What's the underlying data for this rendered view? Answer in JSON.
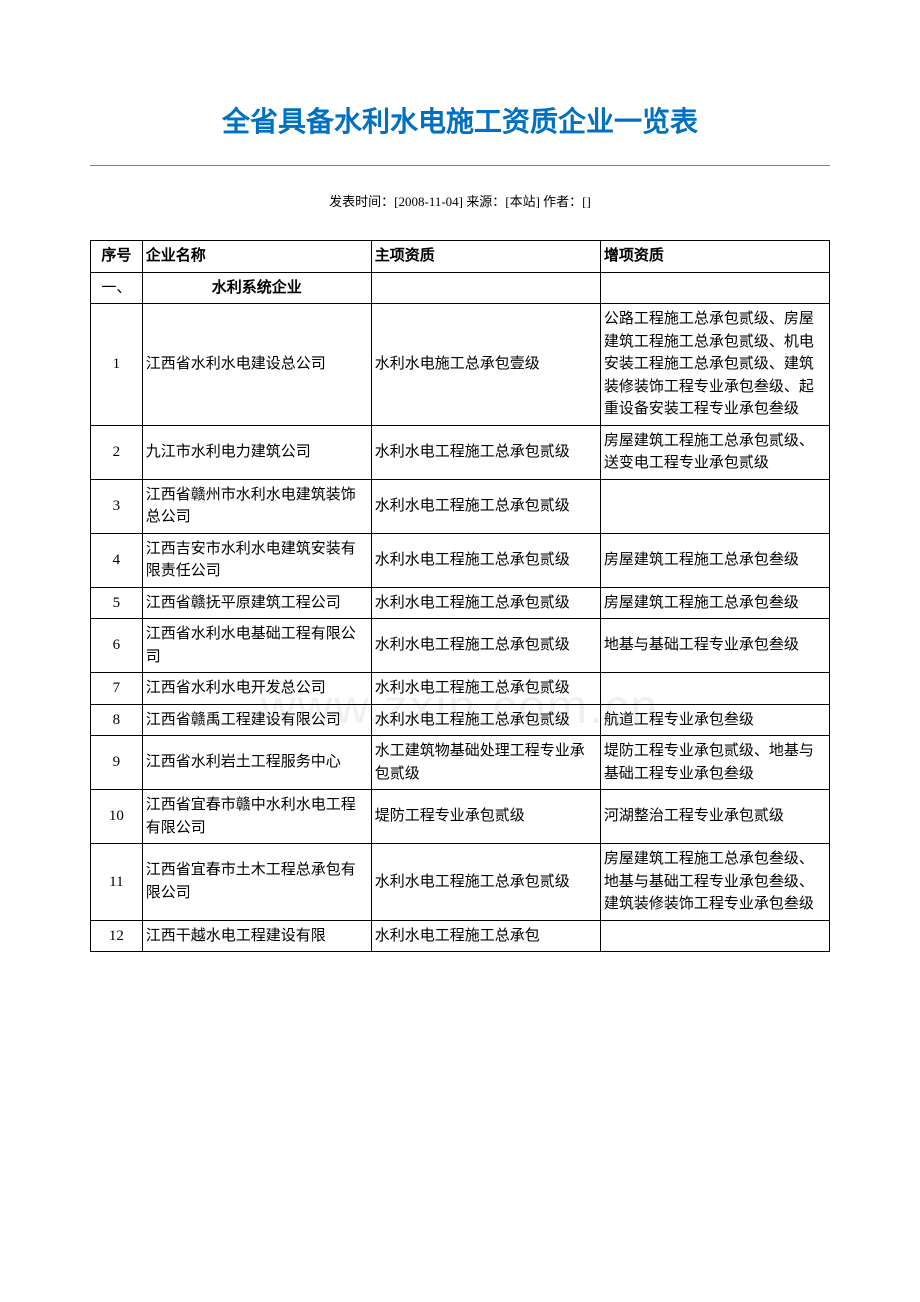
{
  "title": "全省具备水利水电施工资质企业一览表",
  "meta": "发表时间：[2008-11-04] 来源：[本站] 作者：[]",
  "watermark": "www.zxin.com.cn",
  "columns": [
    "序号",
    "企业名称",
    "主项资质",
    "增项资质"
  ],
  "section": {
    "seq": "一、",
    "name": "水利系统企业"
  },
  "rows": [
    {
      "seq": "1",
      "name": "江西省水利水电建设总公司",
      "main": "水利水电施工总承包壹级",
      "extra": "公路工程施工总承包贰级、房屋建筑工程施工总承包贰级、机电安装工程施工总承包贰级、建筑装修装饰工程专业承包叁级、起重设备安装工程专业承包叁级"
    },
    {
      "seq": "2",
      "name": "九江市水利电力建筑公司",
      "main": "水利水电工程施工总承包贰级",
      "extra": "房屋建筑工程施工总承包贰级、送变电工程专业承包贰级"
    },
    {
      "seq": "3",
      "name": "江西省赣州市水利水电建筑装饰总公司",
      "main": "水利水电工程施工总承包贰级",
      "extra": ""
    },
    {
      "seq": "4",
      "name": "江西吉安市水利水电建筑安装有限责任公司",
      "main": "水利水电工程施工总承包贰级",
      "extra": "房屋建筑工程施工总承包叁级"
    },
    {
      "seq": "5",
      "name": "江西省赣抚平原建筑工程公司",
      "main": "水利水电工程施工总承包贰级",
      "extra": "房屋建筑工程施工总承包叁级"
    },
    {
      "seq": "6",
      "name": "江西省水利水电基础工程有限公司",
      "main": "水利水电工程施工总承包贰级",
      "extra": "地基与基础工程专业承包叁级"
    },
    {
      "seq": "7",
      "name": "江西省水利水电开发总公司",
      "main": "水利水电工程施工总承包贰级",
      "extra": ""
    },
    {
      "seq": "8",
      "name": "江西省赣禹工程建设有限公司",
      "main": "水利水电工程施工总承包贰级",
      "extra": "航道工程专业承包叁级"
    },
    {
      "seq": "9",
      "name": "江西省水利岩土工程服务中心",
      "main": "水工建筑物基础处理工程专业承包贰级",
      "extra": "堤防工程专业承包贰级、地基与基础工程专业承包叁级"
    },
    {
      "seq": "10",
      "name": "江西省宜春市赣中水利水电工程有限公司",
      "main": "堤防工程专业承包贰级",
      "extra": "河湖整治工程专业承包贰级"
    },
    {
      "seq": "11",
      "name": "江西省宜春市土木工程总承包有限公司",
      "main": "水利水电工程施工总承包贰级",
      "extra": "房屋建筑工程施工总承包叁级、地基与基础工程专业承包叁级、建筑装修装饰工程专业承包叁级"
    },
    {
      "seq": "12",
      "name": "江西干越水电工程建设有限",
      "main": "水利水电工程施工总承包",
      "extra": ""
    }
  ]
}
